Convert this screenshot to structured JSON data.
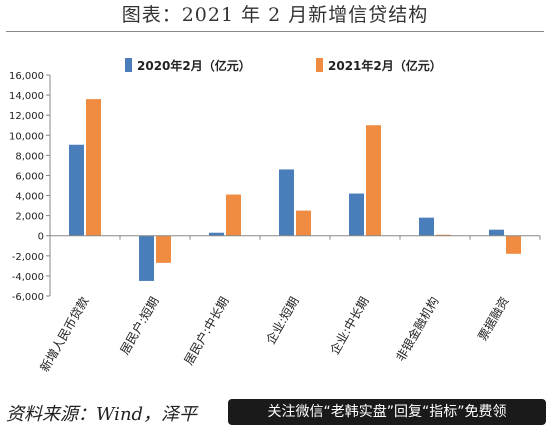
{
  "title": "图表：2021 年 2 月新增信贷结构",
  "source_text": "资料来源：Wind，泽平",
  "banner_text": "关注微信“老韩实盘”回复“指标”免费领",
  "colors": {
    "series_2020": "#4a7ebb",
    "series_2021": "#f08c42"
  },
  "chart_data": {
    "type": "bar",
    "categories": [
      "新增人民币贷款",
      "居民户:短期",
      "居民户:中长期",
      "企业:短期",
      "企业:中长期",
      "非银金融机构",
      "票据融资"
    ],
    "series": [
      {
        "name": "2020年2月（亿元）",
        "values": [
          9057,
          -4500,
          300,
          6600,
          4200,
          1800,
          600
        ]
      },
      {
        "name": "2021年2月（亿元）",
        "values": [
          13600,
          -2700,
          4100,
          2500,
          11000,
          100,
          -1800
        ]
      }
    ],
    "ylim": [
      -6000,
      16000
    ],
    "yticks": [
      "-6,000",
      "-4,000",
      "-2,000",
      "0",
      "2,000",
      "4,000",
      "6,000",
      "8,000",
      "10,000",
      "12,000",
      "14,000",
      "16,000"
    ],
    "legend_position": "top"
  }
}
